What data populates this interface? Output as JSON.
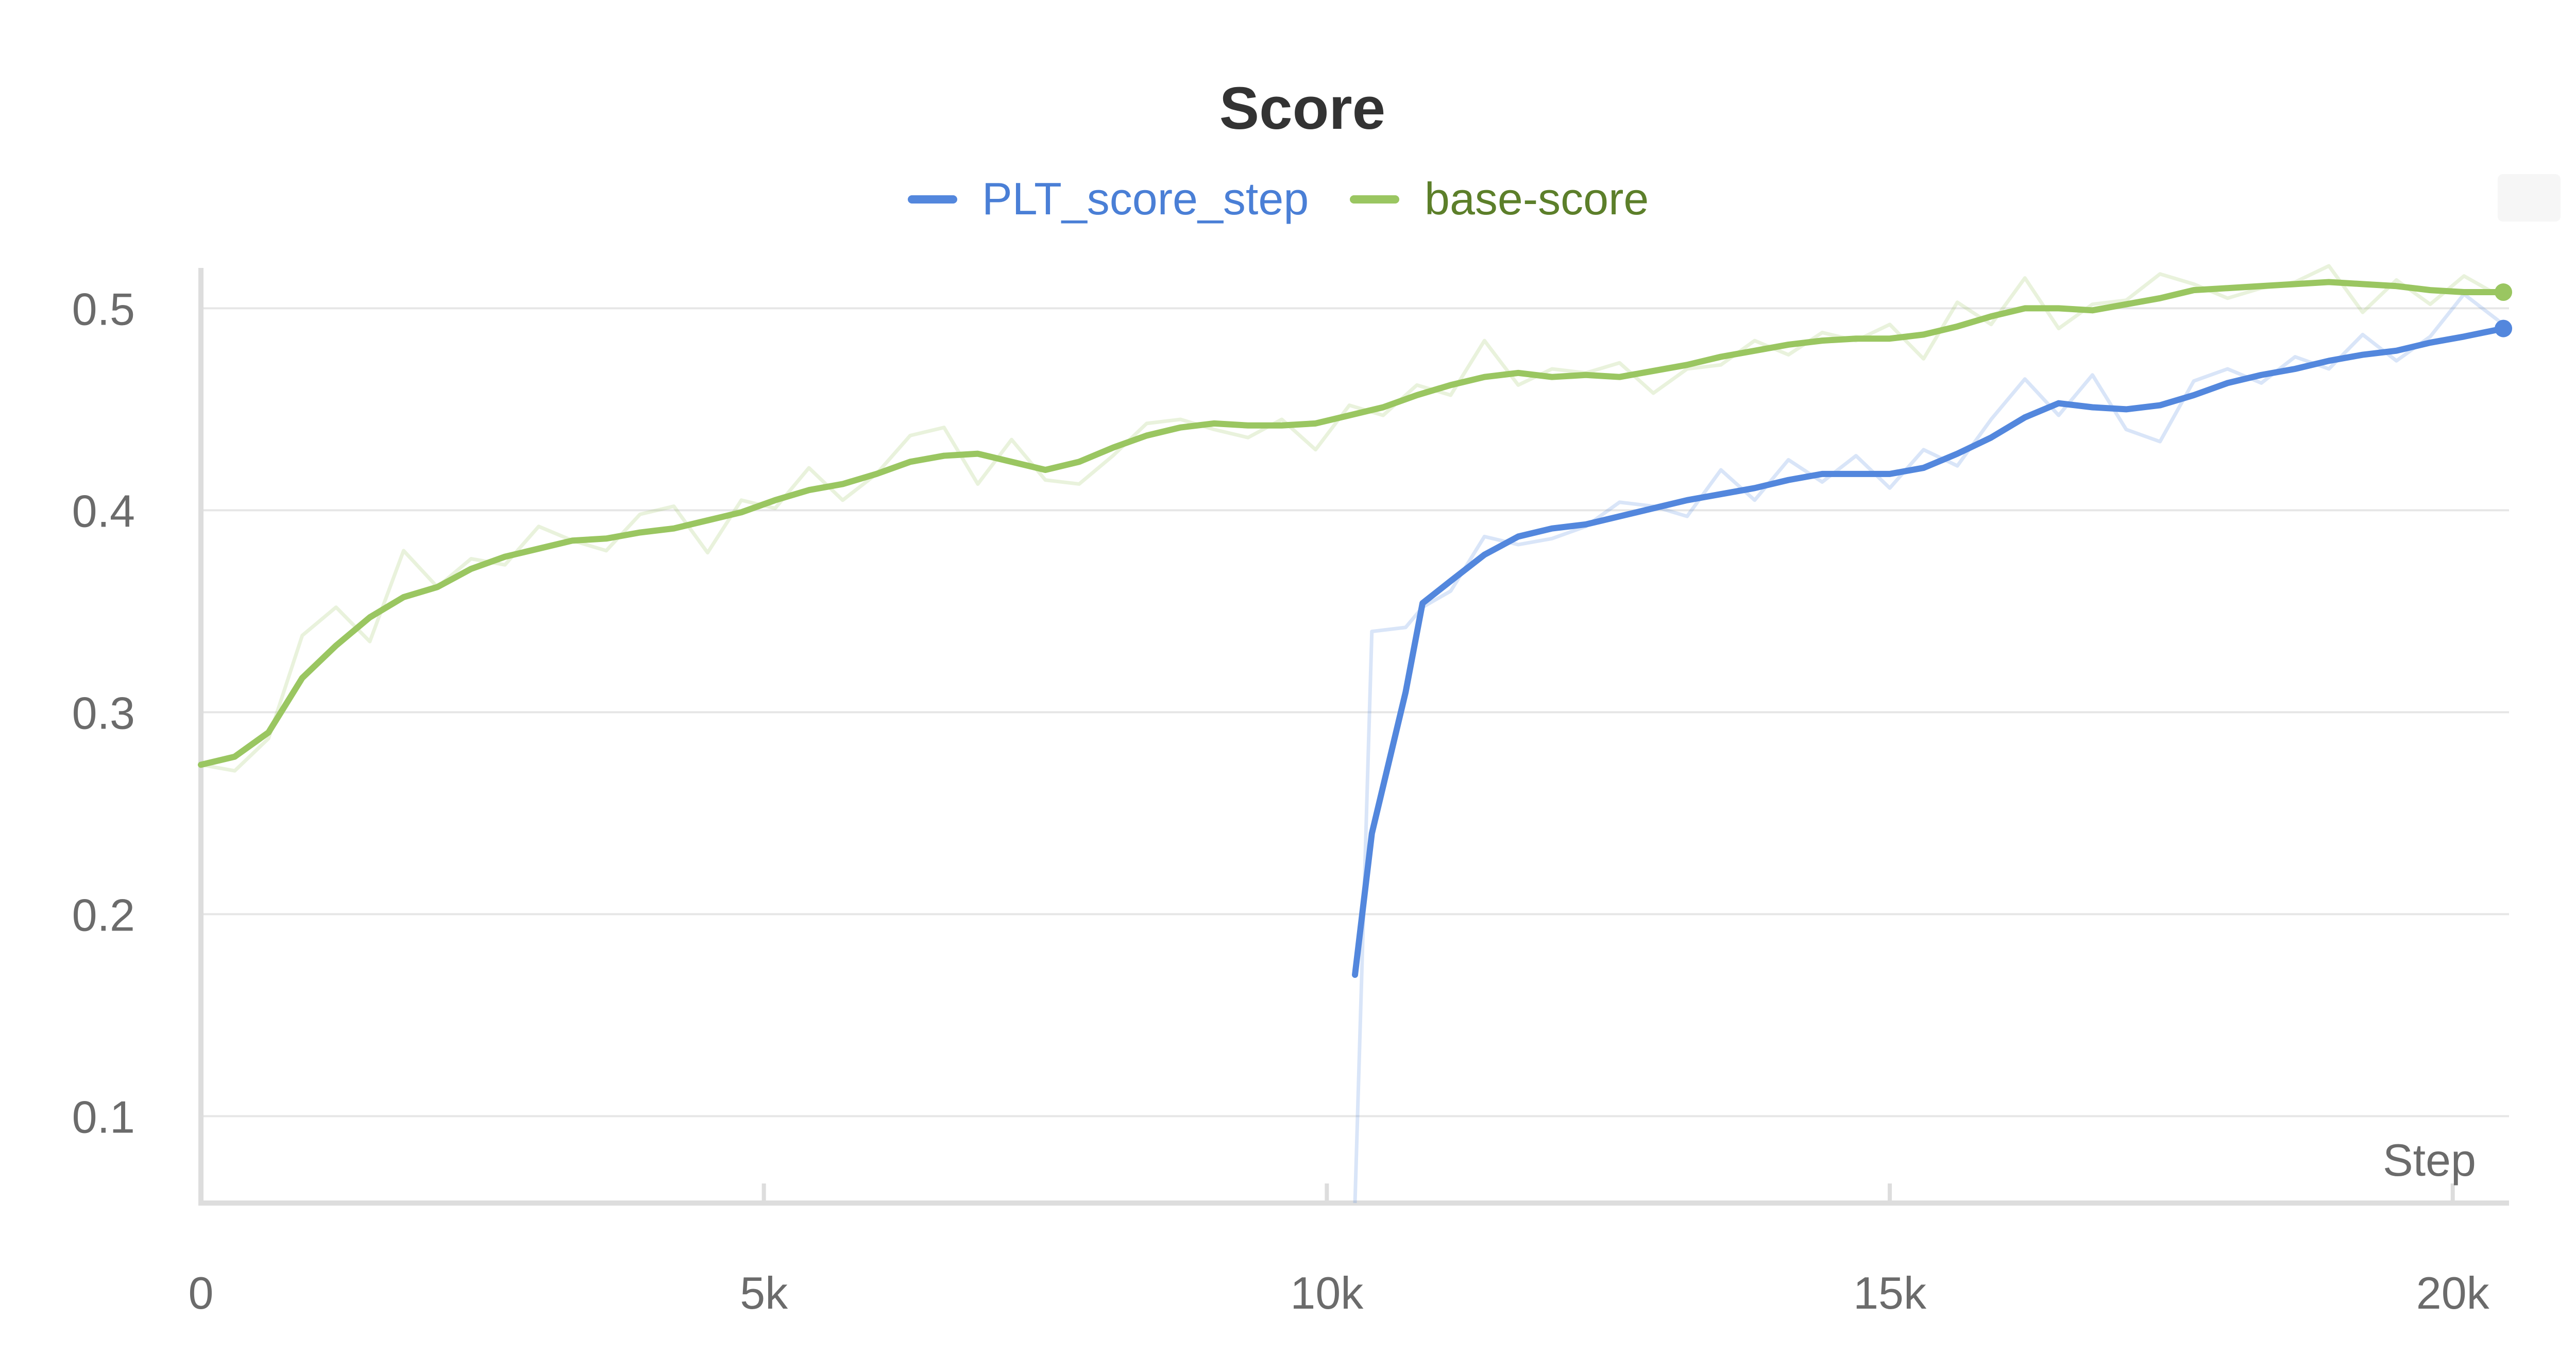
{
  "chart_data": {
    "type": "line",
    "title": "Score",
    "xlabel": "Step",
    "ylabel": "",
    "xlim": [
      0,
      20500
    ],
    "ylim": [
      0.057,
      0.52
    ],
    "x_ticks": [
      {
        "value": 0,
        "label": "0"
      },
      {
        "value": 5000,
        "label": "5k"
      },
      {
        "value": 10000,
        "label": "10k"
      },
      {
        "value": 15000,
        "label": "15k"
      },
      {
        "value": 20000,
        "label": "20k"
      }
    ],
    "y_ticks": [
      {
        "value": 0.1,
        "label": "0.1"
      },
      {
        "value": 0.2,
        "label": "0.2"
      },
      {
        "value": 0.3,
        "label": "0.3"
      },
      {
        "value": 0.4,
        "label": "0.4"
      },
      {
        "value": 0.5,
        "label": "0.5"
      }
    ],
    "grid": true,
    "legend_position": "top-center",
    "series": [
      {
        "name": "PLT_score_step",
        "color": "#5387dd",
        "x": [
          10250,
          10400,
          10700,
          10850,
          11100,
          11400,
          11700,
          12000,
          12300,
          12600,
          12900,
          13200,
          13500,
          13800,
          14100,
          14400,
          14700,
          15000,
          15300,
          15600,
          15900,
          16200,
          16500,
          16800,
          17100,
          17400,
          17700,
          18000,
          18300,
          18600,
          18900,
          19200,
          19500,
          19800,
          20100,
          20450
        ],
        "smoothed": [
          0.17,
          0.24,
          0.31,
          0.354,
          0.365,
          0.378,
          0.387,
          0.391,
          0.393,
          0.397,
          0.401,
          0.405,
          0.408,
          0.411,
          0.415,
          0.418,
          0.418,
          0.418,
          0.421,
          0.428,
          0.436,
          0.446,
          0.453,
          0.451,
          0.45,
          0.452,
          0.457,
          0.463,
          0.467,
          0.47,
          0.474,
          0.477,
          0.479,
          0.483,
          0.486,
          0.49
        ],
        "raw": [
          0.02,
          0.34,
          0.342,
          0.352,
          0.36,
          0.387,
          0.383,
          0.386,
          0.392,
          0.404,
          0.402,
          0.397,
          0.42,
          0.405,
          0.425,
          0.414,
          0.427,
          0.411,
          0.43,
          0.422,
          0.445,
          0.465,
          0.447,
          0.467,
          0.44,
          0.434,
          0.464,
          0.47,
          0.463,
          0.476,
          0.47,
          0.487,
          0.474,
          0.486,
          0.507,
          0.492
        ]
      },
      {
        "name": "base-score",
        "color": "#9ac661",
        "x": [
          0,
          300,
          600,
          900,
          1200,
          1500,
          1800,
          2100,
          2400,
          2700,
          3000,
          3300,
          3600,
          3900,
          4200,
          4500,
          4800,
          5100,
          5400,
          5700,
          6000,
          6300,
          6600,
          6900,
          7200,
          7500,
          7800,
          8100,
          8400,
          8700,
          9000,
          9300,
          9600,
          9900,
          10200,
          10500,
          10800,
          11100,
          11400,
          11700,
          12000,
          12300,
          12600,
          12900,
          13200,
          13500,
          13800,
          14100,
          14400,
          14700,
          15000,
          15300,
          15600,
          15900,
          16200,
          16500,
          16800,
          17100,
          17400,
          17700,
          18000,
          18300,
          18600,
          18900,
          19200,
          19500,
          19800,
          20100,
          20450
        ],
        "smoothed": [
          0.274,
          0.278,
          0.29,
          0.317,
          0.333,
          0.347,
          0.357,
          0.362,
          0.371,
          0.377,
          0.381,
          0.385,
          0.386,
          0.389,
          0.391,
          0.395,
          0.399,
          0.405,
          0.41,
          0.413,
          0.418,
          0.424,
          0.427,
          0.428,
          0.424,
          0.42,
          0.424,
          0.431,
          0.437,
          0.441,
          0.443,
          0.442,
          0.442,
          0.443,
          0.447,
          0.451,
          0.457,
          0.462,
          0.466,
          0.468,
          0.466,
          0.467,
          0.466,
          0.469,
          0.472,
          0.476,
          0.479,
          0.482,
          0.484,
          0.485,
          0.485,
          0.487,
          0.491,
          0.496,
          0.5,
          0.5,
          0.499,
          0.502,
          0.505,
          0.509,
          0.51,
          0.511,
          0.512,
          0.513,
          0.512,
          0.511,
          0.509,
          0.508,
          0.508
        ],
        "raw": [
          0.274,
          0.271,
          0.287,
          0.338,
          0.352,
          0.335,
          0.38,
          0.362,
          0.376,
          0.373,
          0.392,
          0.385,
          0.38,
          0.398,
          0.402,
          0.379,
          0.405,
          0.401,
          0.421,
          0.405,
          0.418,
          0.437,
          0.441,
          0.413,
          0.435,
          0.415,
          0.413,
          0.427,
          0.443,
          0.445,
          0.44,
          0.436,
          0.445,
          0.43,
          0.452,
          0.447,
          0.462,
          0.457,
          0.484,
          0.462,
          0.47,
          0.468,
          0.473,
          0.458,
          0.47,
          0.472,
          0.484,
          0.477,
          0.488,
          0.484,
          0.492,
          0.475,
          0.503,
          0.492,
          0.515,
          0.49,
          0.502,
          0.504,
          0.517,
          0.512,
          0.505,
          0.51,
          0.513,
          0.521,
          0.498,
          0.514,
          0.502,
          0.516,
          0.505
        ]
      }
    ]
  }
}
